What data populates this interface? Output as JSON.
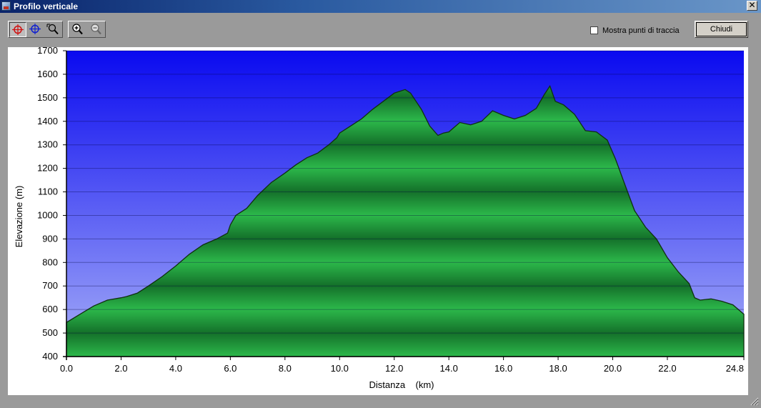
{
  "window": {
    "title": "Profilo verticale"
  },
  "toolbar": {
    "tools": [
      {
        "name": "crosshair-red-icon",
        "pressed": true
      },
      {
        "name": "crosshair-blue-icon",
        "pressed": false
      },
      {
        "name": "zoom-area-icon",
        "pressed": false
      },
      {
        "name": "zoom-in-icon",
        "pressed": false
      },
      {
        "name": "zoom-out-icon",
        "pressed": false
      }
    ],
    "show_trackpoints_label": "Mostra punti di traccia",
    "show_trackpoints_checked": false,
    "close_label": "Chiudi"
  },
  "chart_data": {
    "type": "area",
    "xlabel": "Distanza    (km)",
    "ylabel": "Elevazione (m)",
    "xlim": [
      0,
      24.8
    ],
    "ylim": [
      400,
      1700
    ],
    "x_ticks": [
      "0.0",
      "2.0",
      "4.0",
      "6.0",
      "8.0",
      "10.0",
      "12.0",
      "14.0",
      "16.0",
      "18.0",
      "20.0",
      "22.0",
      "24.8"
    ],
    "x_tick_values": [
      0,
      2,
      4,
      6,
      8,
      10,
      12,
      14,
      16,
      18,
      20,
      22,
      24.8
    ],
    "y_ticks": [
      "1700",
      "1600",
      "1500",
      "1400",
      "1300",
      "1200",
      "1100",
      "1000",
      "900",
      "800",
      "700",
      "600",
      "500",
      "400"
    ],
    "y_tick_values": [
      1700,
      1600,
      1500,
      1400,
      1300,
      1200,
      1100,
      1000,
      900,
      800,
      700,
      600,
      500,
      400
    ],
    "grid": true,
    "colors": {
      "sky_top": "#0a0af0",
      "sky_bottom": "#a6aef8",
      "fill_light": "#2cb84a",
      "fill_dark": "#14702a",
      "outline": "#103010"
    },
    "series": [
      {
        "x": [
          0,
          0.5,
          1.0,
          1.5,
          2.0,
          2.2,
          2.6,
          3.0,
          3.5,
          4.0,
          4.5,
          5.0,
          5.5,
          5.9,
          6.0,
          6.2,
          6.6,
          7.0,
          7.5,
          8.0,
          8.4,
          8.8,
          9.2,
          9.6,
          9.9,
          10.0,
          10.4,
          10.8,
          11.2,
          11.6,
          12.0,
          12.4,
          12.6,
          13.0,
          13.3,
          13.6,
          13.8,
          14.0,
          14.4,
          14.8,
          15.2,
          15.6,
          16.0,
          16.4,
          16.8,
          17.2,
          17.5,
          17.7,
          17.9,
          18.2,
          18.6,
          19.0,
          19.4,
          19.8,
          20.1,
          20.4,
          20.8,
          21.2,
          21.6,
          22.0,
          22.4,
          22.8,
          23.0,
          23.2,
          23.6,
          24.0,
          24.4,
          24.8
        ],
        "y": [
          545,
          580,
          615,
          640,
          650,
          655,
          670,
          700,
          740,
          785,
          835,
          875,
          900,
          925,
          960,
          1000,
          1030,
          1085,
          1140,
          1180,
          1215,
          1245,
          1265,
          1300,
          1330,
          1350,
          1380,
          1410,
          1450,
          1485,
          1520,
          1535,
          1520,
          1450,
          1380,
          1340,
          1350,
          1355,
          1395,
          1385,
          1400,
          1445,
          1425,
          1410,
          1425,
          1455,
          1515,
          1550,
          1485,
          1470,
          1430,
          1360,
          1355,
          1320,
          1240,
          1145,
          1020,
          950,
          900,
          820,
          760,
          710,
          650,
          640,
          645,
          635,
          620,
          580
        ]
      }
    ]
  }
}
